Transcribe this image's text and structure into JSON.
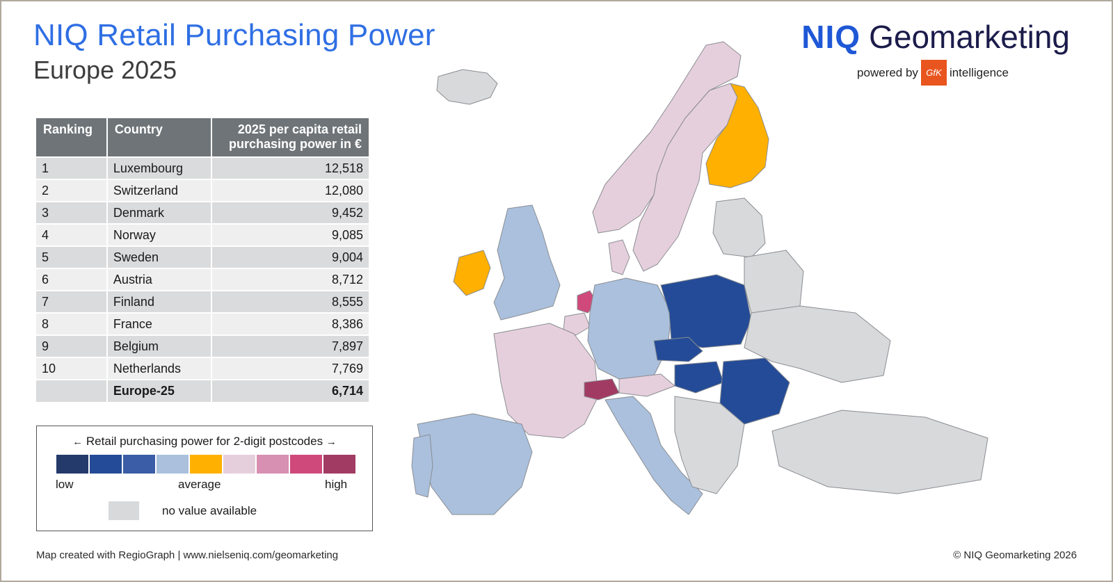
{
  "title": "NIQ Retail Purchasing Power",
  "subtitle": "Europe 2025",
  "brand": {
    "niq": "NIQ",
    "name": "Geomarketing",
    "powered_by": "powered by",
    "gfk": "GfK",
    "intelligence": "intelligence"
  },
  "table": {
    "headers": [
      "Ranking",
      "Country",
      "2025 per capita retail purchasing power in €"
    ],
    "rows": [
      {
        "rank": "1",
        "country": "Luxembourg",
        "value": "12,518"
      },
      {
        "rank": "2",
        "country": "Switzerland",
        "value": "12,080"
      },
      {
        "rank": "3",
        "country": "Denmark",
        "value": "9,452"
      },
      {
        "rank": "4",
        "country": "Norway",
        "value": "9,085"
      },
      {
        "rank": "5",
        "country": "Sweden",
        "value": "9,004"
      },
      {
        "rank": "6",
        "country": "Austria",
        "value": "8,712"
      },
      {
        "rank": "7",
        "country": "Finland",
        "value": "8,555"
      },
      {
        "rank": "8",
        "country": "France",
        "value": "8,386"
      },
      {
        "rank": "9",
        "country": "Belgium",
        "value": "7,897"
      },
      {
        "rank": "10",
        "country": "Netherlands",
        "value": "7,769"
      }
    ],
    "total": {
      "rank": "",
      "country": "Europe-25",
      "value": "6,714"
    }
  },
  "legend": {
    "title": "Retail purchasing power for 2-digit postcodes",
    "arrow_left": "←",
    "arrow_right": "→",
    "colors": [
      "#233a6b",
      "#244b97",
      "#3b5ca6",
      "#aac0dd",
      "#ffb000",
      "#e6cfdc",
      "#d78fb2",
      "#cf4a7b",
      "#a23b63"
    ],
    "low": "low",
    "average": "average",
    "high": "high",
    "no_value": "no value available",
    "no_value_color": "#d8d9db"
  },
  "footer": {
    "left": "Map created with RegioGraph | www.nielseniq.com/geomarketing",
    "right": "© NIQ Geomarketing 2026"
  },
  "map": {
    "regions": [
      {
        "name": "Iceland",
        "level": "no-value"
      },
      {
        "name": "Norway",
        "level": "high-1"
      },
      {
        "name": "Sweden",
        "level": "high-1"
      },
      {
        "name": "Finland",
        "level": "average"
      },
      {
        "name": "Ireland",
        "level": "average"
      },
      {
        "name": "United Kingdom",
        "level": "low-4"
      },
      {
        "name": "Denmark",
        "level": "high-1"
      },
      {
        "name": "Netherlands",
        "level": "high-2"
      },
      {
        "name": "Belgium",
        "level": "high-1"
      },
      {
        "name": "France",
        "level": "high-1"
      },
      {
        "name": "Germany",
        "level": "low-4"
      },
      {
        "name": "Poland",
        "level": "low-2"
      },
      {
        "name": "Baltics",
        "level": "no-value"
      },
      {
        "name": "Belarus",
        "level": "no-value"
      },
      {
        "name": "Ukraine",
        "level": "no-value"
      },
      {
        "name": "Czechia",
        "level": "low-2"
      },
      {
        "name": "Austria",
        "level": "high-1"
      },
      {
        "name": "Switzerland",
        "level": "high-4"
      },
      {
        "name": "Italy",
        "level": "low-4"
      },
      {
        "name": "Spain",
        "level": "low-4"
      },
      {
        "name": "Portugal",
        "level": "low-4"
      },
      {
        "name": "Hungary",
        "level": "low-2"
      },
      {
        "name": "Romania",
        "level": "low-2"
      },
      {
        "name": "Balkans",
        "level": "no-value"
      },
      {
        "name": "Turkey",
        "level": "no-value"
      }
    ]
  }
}
